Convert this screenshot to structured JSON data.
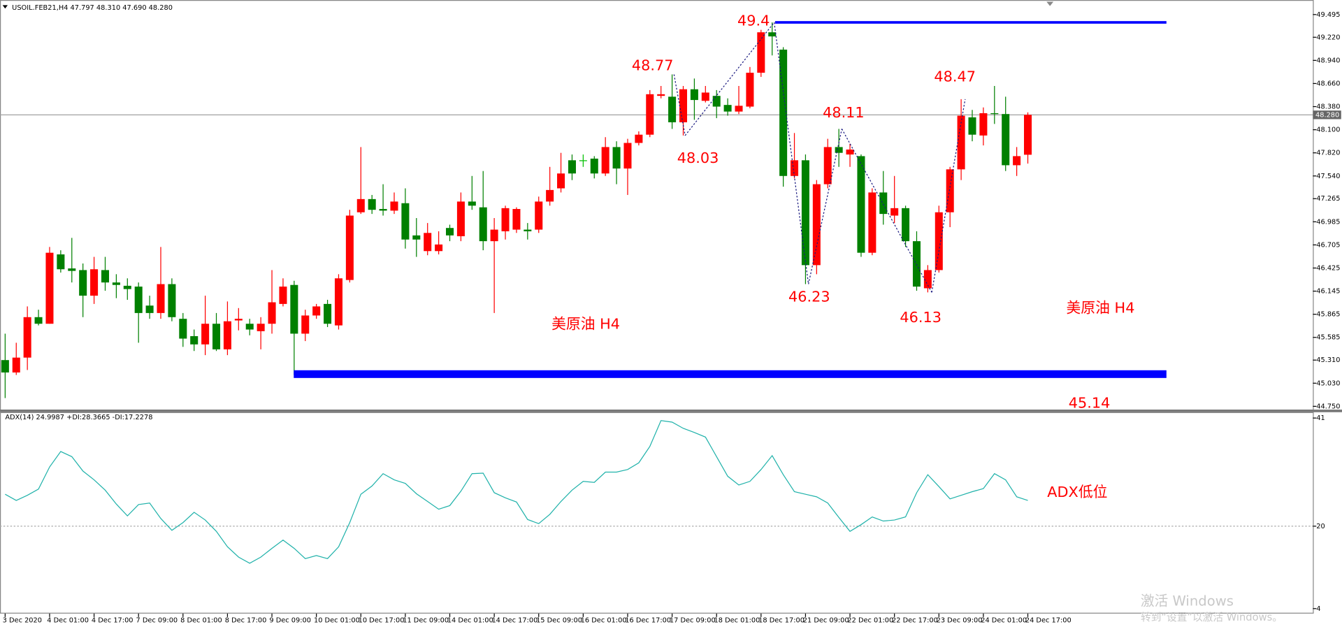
{
  "chart_data": [
    {
      "type": "candlestick",
      "title": "USOIL.FEB21,H4  47.797 48.310 47.690 48.280",
      "categories": [
        "3 Dec 2020",
        null,
        null,
        null,
        "4 Dec 01:00",
        null,
        null,
        null,
        "4 Dec 17:00",
        null,
        null,
        null,
        "7 Dec 09:00",
        null,
        null,
        null,
        "8 Dec 01:00",
        null,
        null,
        null,
        "8 Dec 17:00",
        null,
        null,
        null,
        "9 Dec 09:00",
        null,
        null,
        null,
        "10 Dec 01:00",
        null,
        null,
        null,
        "10 Dec 17:00",
        null,
        null,
        null,
        "11 Dec 09:00",
        null,
        null,
        null,
        "14 Dec 01:00",
        null,
        null,
        null,
        "14 Dec 17:00",
        null,
        null,
        null,
        "15 Dec 09:00",
        null,
        null,
        null,
        "16 Dec 01:00",
        null,
        null,
        null,
        "16 Dec 17:00",
        null,
        null,
        null,
        "17 Dec 09:00",
        null,
        null,
        null,
        "18 Dec 01:00",
        null,
        null,
        null,
        "18 Dec 17:00",
        null,
        null,
        null,
        "21 Dec 09:00",
        null,
        null,
        null,
        "22 Dec 01:00",
        null,
        null,
        null,
        "22 Dec 17:00",
        null,
        null,
        null,
        "23 Dec 09:00",
        null,
        null,
        null,
        "24 Dec 01:00",
        null,
        null,
        null,
        "24 Dec 17:00"
      ],
      "open": [
        45.31,
        45.16,
        45.34,
        45.83,
        45.75,
        46.59,
        46.42,
        46.4,
        46.09,
        46.4,
        46.25,
        46.21,
        46.2,
        45.97,
        45.88,
        46.23,
        45.81,
        45.6,
        45.5,
        45.75,
        45.44,
        45.79,
        45.75,
        45.66,
        45.75,
        45.99,
        46.22,
        45.63,
        45.85,
        45.99,
        45.73,
        46.28,
        47.1,
        47.26,
        47.14,
        47.12,
        47.21,
        46.82,
        46.63,
        46.63,
        46.91,
        46.81,
        47.23,
        47.16,
        46.75,
        46.87,
        46.89,
        46.89,
        46.89,
        47.23,
        47.39,
        47.73,
        47.73,
        47.75,
        47.57,
        47.89,
        47.63,
        47.94,
        48.04,
        48.51,
        48.5,
        48.19,
        48.59,
        48.45,
        48.51,
        48.4,
        48.32,
        48.38,
        48.79,
        49.28,
        49.07,
        47.54,
        47.73,
        46.46,
        47.44,
        47.89,
        47.8,
        47.78,
        46.61,
        47.34,
        47.06,
        47.15,
        46.75,
        46.18,
        46.4,
        47.1,
        47.62,
        48.25,
        48.03,
        48.3,
        48.29,
        47.67,
        47.797
      ],
      "high": [
        45.63,
        45.52,
        45.96,
        45.92,
        46.68,
        46.64,
        46.79,
        46.48,
        46.56,
        46.56,
        46.35,
        46.3,
        46.25,
        46.09,
        46.68,
        46.3,
        45.88,
        45.68,
        46.09,
        45.88,
        46.02,
        45.94,
        45.81,
        45.83,
        46.4,
        46.3,
        46.27,
        45.92,
        45.99,
        46.04,
        46.35,
        47.13,
        47.89,
        47.31,
        47.44,
        47.34,
        47.39,
        47.03,
        46.97,
        46.87,
        46.95,
        47.34,
        47.54,
        47.6,
        47.03,
        47.18,
        47.16,
        46.97,
        47.29,
        47.65,
        47.82,
        47.8,
        47.8,
        47.78,
        48.01,
        47.96,
        47.99,
        48.08,
        48.58,
        48.63,
        48.77,
        48.63,
        48.72,
        48.63,
        48.58,
        48.48,
        48.63,
        48.86,
        49.31,
        49.4,
        49.1,
        48.06,
        47.8,
        47.49,
        47.99,
        48.11,
        47.93,
        47.8,
        47.39,
        47.6,
        47.54,
        47.18,
        46.87,
        46.46,
        47.18,
        47.65,
        48.47,
        48.34,
        48.37,
        48.63,
        48.5,
        47.89,
        48.31
      ],
      "low": [
        44.85,
        45.13,
        45.19,
        45.73,
        45.75,
        46.37,
        46.25,
        45.83,
        45.99,
        46.15,
        46.06,
        46.04,
        45.52,
        45.81,
        45.81,
        45.78,
        45.47,
        45.42,
        45.37,
        45.42,
        45.37,
        45.67,
        45.61,
        45.44,
        45.63,
        45.96,
        45.13,
        45.54,
        45.81,
        45.71,
        45.68,
        46.25,
        47.08,
        47.08,
        47.06,
        47.08,
        46.66,
        46.56,
        46.58,
        46.59,
        46.75,
        46.75,
        47.13,
        46.64,
        45.88,
        46.77,
        46.85,
        46.77,
        46.85,
        47.18,
        47.34,
        47.49,
        47.65,
        47.51,
        47.54,
        47.44,
        47.31,
        47.91,
        48.01,
        48.48,
        48.11,
        48.03,
        48.22,
        48.43,
        48.24,
        48.27,
        48.29,
        48.36,
        48.74,
        49.0,
        47.41,
        47.51,
        46.23,
        46.35,
        47.39,
        47.65,
        47.65,
        46.56,
        46.58,
        46.95,
        46.97,
        46.68,
        46.15,
        46.13,
        46.37,
        46.92,
        47.49,
        47.96,
        47.91,
        48.17,
        47.6,
        47.54,
        47.69
      ],
      "close": [
        45.16,
        45.34,
        45.83,
        45.75,
        46.61,
        46.41,
        46.39,
        46.09,
        46.41,
        46.25,
        46.22,
        46.17,
        45.88,
        45.88,
        46.23,
        45.83,
        45.57,
        45.5,
        45.75,
        45.44,
        45.78,
        45.81,
        45.68,
        45.75,
        46.01,
        46.2,
        45.63,
        45.85,
        45.96,
        45.75,
        46.3,
        47.06,
        47.26,
        47.13,
        47.12,
        47.23,
        46.77,
        46.77,
        46.85,
        46.71,
        46.82,
        47.23,
        47.18,
        46.75,
        46.89,
        47.15,
        47.14,
        46.87,
        47.23,
        47.37,
        47.57,
        47.57,
        47.73,
        47.57,
        47.89,
        47.63,
        47.94,
        48.04,
        48.53,
        48.53,
        48.19,
        48.59,
        48.46,
        48.55,
        48.38,
        48.32,
        48.39,
        48.79,
        49.28,
        49.23,
        47.54,
        47.73,
        46.46,
        47.44,
        47.89,
        47.82,
        47.86,
        46.61,
        47.34,
        47.08,
        47.15,
        46.75,
        46.2,
        46.4,
        47.1,
        47.62,
        48.27,
        48.04,
        48.3,
        48.29,
        47.67,
        47.78,
        48.28
      ],
      "up_color": "#ff0000",
      "down_color": "#008000",
      "doji_color": "#00c000",
      "ylim": [
        44.71,
        49.64
      ],
      "yticks": [
        49.495,
        {
          "value": 49.22,
          "label": "49.220"
        },
        {
          "value": 48.94,
          "label": "48.940"
        },
        {
          "value": 48.66,
          "label": "48.660"
        },
        {
          "value": 48.38,
          "label": "48.380"
        },
        {
          "value": 48.1,
          "label": "48.100"
        },
        {
          "value": 47.82,
          "label": "47.820"
        },
        {
          "value": 47.54,
          "label": "47.540"
        },
        47.265,
        46.985,
        46.705,
        46.425,
        46.145,
        45.865,
        45.585,
        {
          "value": 45.31,
          "label": "45.310"
        },
        {
          "value": 45.03,
          "label": "45.030"
        },
        {
          "value": 44.75,
          "label": "44.750"
        }
      ],
      "last_price": {
        "value": 48.28,
        "label": "48.280"
      },
      "annotations": [
        49.4,
        48.77,
        48.03,
        48.11,
        46.23,
        46.13,
        48.47,
        45.14
      ],
      "level_color": "#0000ff",
      "texts": [
        "美原油  H4",
        "美原油 H4"
      ]
    },
    {
      "type": "line",
      "title": "ADX(14) 24.9987 +DI:28.3665 -DI:17.2278",
      "values": [
        26.2,
        25.0,
        26.0,
        27.2,
        31.5,
        34.5,
        33.5,
        30.7,
        29.0,
        27.0,
        24.3,
        22.0,
        24.2,
        24.5,
        21.5,
        19.2,
        20.7,
        22.7,
        21.2,
        19.0,
        16.0,
        14.0,
        12.8,
        14.0,
        15.7,
        17.3,
        15.7,
        13.7,
        14.3,
        13.7,
        16.0,
        20.7,
        26.2,
        27.8,
        30.2,
        29.0,
        28.3,
        26.3,
        24.8,
        23.3,
        24.0,
        26.8,
        30.2,
        30.3,
        26.5,
        25.5,
        24.7,
        21.3,
        20.5,
        22.3,
        24.8,
        27.0,
        28.7,
        28.5,
        30.5,
        30.5,
        31.0,
        32.3,
        35.5,
        40.5,
        40.2,
        39.0,
        38.2,
        37.3,
        33.5,
        29.7,
        28.0,
        28.7,
        31.0,
        33.7,
        30.0,
        26.7,
        26.2,
        25.7,
        24.5,
        21.7,
        19.0,
        20.3,
        21.8,
        21.0,
        21.2,
        21.8,
        26.5,
        30.0,
        27.7,
        25.3,
        26.0,
        26.7,
        27.3,
        30.2,
        29.0,
        25.7,
        25.0
      ],
      "color": "#20b2aa",
      "ylim": [
        3.2,
        41.8
      ],
      "yticks": [
        41,
        20,
        4
      ],
      "level": 20,
      "annotations": [
        "ADX低位"
      ]
    }
  ],
  "watermark": {
    "title": "激活 Windows",
    "subtitle": "转到“设置”以激活 Windows。"
  }
}
